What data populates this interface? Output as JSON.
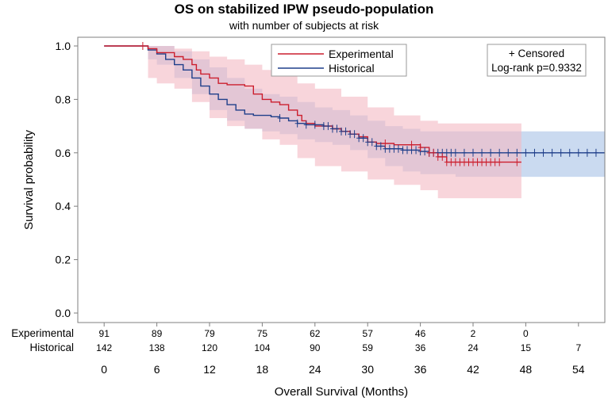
{
  "chart_data": {
    "type": "line",
    "subtype": "kaplan-meier",
    "title": "OS on stabilized IPW pseudo-population",
    "subtitle": "with number of subjects at risk",
    "xlabel": "Overall Survival (Months)",
    "ylabel": "Survival probability",
    "xlim": [
      -3,
      57
    ],
    "ylim": [
      0,
      1.0
    ],
    "xticks": [
      0,
      6,
      12,
      18,
      24,
      30,
      36,
      42,
      48,
      54
    ],
    "yticks": [
      "0.0",
      "0.2",
      "0.4",
      "0.6",
      "0.8",
      "1.0"
    ],
    "legend": {
      "placement": "top-center",
      "entries": [
        "Experimental",
        "Historical"
      ]
    },
    "censor_note": {
      "symbol_label": "+ Censored",
      "logrank": "Log-rank p=0.9332"
    },
    "series": [
      {
        "name": "Experimental",
        "color": "#cc1f2e",
        "band_color": "#f3b9c3",
        "steps": [
          [
            0,
            1.0
          ],
          [
            5,
            0.99
          ],
          [
            6,
            0.975
          ],
          [
            8,
            0.96
          ],
          [
            9,
            0.95
          ],
          [
            10,
            0.93
          ],
          [
            10.5,
            0.91
          ],
          [
            11,
            0.895
          ],
          [
            12,
            0.88
          ],
          [
            13,
            0.86
          ],
          [
            14,
            0.855
          ],
          [
            16,
            0.85
          ],
          [
            17,
            0.82
          ],
          [
            18,
            0.8
          ],
          [
            19,
            0.79
          ],
          [
            20,
            0.78
          ],
          [
            21,
            0.76
          ],
          [
            22,
            0.74
          ],
          [
            22.5,
            0.72
          ],
          [
            23,
            0.71
          ],
          [
            24,
            0.7
          ],
          [
            26,
            0.69
          ],
          [
            27,
            0.68
          ],
          [
            28,
            0.67
          ],
          [
            29,
            0.66
          ],
          [
            30,
            0.64
          ],
          [
            31,
            0.635
          ],
          [
            33,
            0.63
          ],
          [
            36,
            0.62
          ],
          [
            37,
            0.6
          ],
          [
            38,
            0.585
          ],
          [
            39,
            0.565
          ],
          [
            47.5,
            0.565
          ]
        ],
        "band": [
          [
            0,
            1.0,
            1.0
          ],
          [
            5,
            0.88,
            1.0
          ],
          [
            6,
            0.86,
            1.0
          ],
          [
            8,
            0.84,
            0.99
          ],
          [
            10,
            0.79,
            0.98
          ],
          [
            12,
            0.73,
            0.96
          ],
          [
            14,
            0.7,
            0.95
          ],
          [
            16,
            0.69,
            0.93
          ],
          [
            18,
            0.65,
            0.91
          ],
          [
            20,
            0.63,
            0.89
          ],
          [
            22,
            0.58,
            0.86
          ],
          [
            24,
            0.55,
            0.84
          ],
          [
            27,
            0.53,
            0.81
          ],
          [
            30,
            0.5,
            0.77
          ],
          [
            33,
            0.48,
            0.74
          ],
          [
            36,
            0.46,
            0.72
          ],
          [
            38,
            0.43,
            0.71
          ],
          [
            47.5,
            0.43,
            0.71
          ]
        ],
        "censored_x": [
          4.4,
          32,
          35,
          36,
          37,
          37.5,
          38,
          38.5,
          39,
          39.5,
          40,
          40.5,
          41,
          41.5,
          42,
          42.5,
          43,
          43.5,
          44,
          44.5,
          45,
          47
        ]
      },
      {
        "name": "Historical",
        "color": "#1f3f8a",
        "band_color": "#a7c2e6",
        "steps": [
          [
            0,
            1.0
          ],
          [
            5,
            0.985
          ],
          [
            6,
            0.97
          ],
          [
            7,
            0.95
          ],
          [
            8,
            0.93
          ],
          [
            9,
            0.91
          ],
          [
            10,
            0.88
          ],
          [
            11,
            0.85
          ],
          [
            12,
            0.82
          ],
          [
            13,
            0.8
          ],
          [
            14,
            0.78
          ],
          [
            15,
            0.76
          ],
          [
            16,
            0.745
          ],
          [
            17,
            0.74
          ],
          [
            19,
            0.735
          ],
          [
            20,
            0.73
          ],
          [
            21,
            0.72
          ],
          [
            22,
            0.71
          ],
          [
            23,
            0.705
          ],
          [
            25,
            0.7
          ],
          [
            26,
            0.69
          ],
          [
            27,
            0.68
          ],
          [
            28,
            0.67
          ],
          [
            29,
            0.655
          ],
          [
            30,
            0.64
          ],
          [
            31,
            0.625
          ],
          [
            32,
            0.615
          ],
          [
            34,
            0.61
          ],
          [
            36,
            0.605
          ],
          [
            37,
            0.6
          ],
          [
            57,
            0.6
          ]
        ],
        "band": [
          [
            0,
            1.0,
            1.0
          ],
          [
            5,
            0.95,
            1.0
          ],
          [
            6,
            0.93,
            1.0
          ],
          [
            8,
            0.88,
            0.98
          ],
          [
            10,
            0.82,
            0.95
          ],
          [
            12,
            0.76,
            0.92
          ],
          [
            14,
            0.72,
            0.88
          ],
          [
            16,
            0.69,
            0.84
          ],
          [
            18,
            0.68,
            0.82
          ],
          [
            20,
            0.67,
            0.81
          ],
          [
            22,
            0.65,
            0.79
          ],
          [
            24,
            0.64,
            0.77
          ],
          [
            26,
            0.63,
            0.76
          ],
          [
            28,
            0.61,
            0.74
          ],
          [
            30,
            0.58,
            0.72
          ],
          [
            32,
            0.55,
            0.7
          ],
          [
            34,
            0.53,
            0.69
          ],
          [
            36,
            0.52,
            0.68
          ],
          [
            40,
            0.51,
            0.68
          ],
          [
            57,
            0.51,
            0.68
          ]
        ],
        "censored_x": [
          20,
          22,
          23,
          24,
          25,
          25.5,
          26,
          26.5,
          27,
          27.5,
          28,
          28.5,
          29,
          29.5,
          30,
          30.5,
          31,
          31.5,
          32,
          32.5,
          33,
          33.5,
          34,
          34.5,
          35,
          35.5,
          36,
          36.5,
          37,
          37.5,
          38,
          38.5,
          39,
          39.5,
          40,
          41,
          42,
          43,
          44,
          45,
          46,
          47,
          48,
          49,
          50,
          51,
          52,
          53,
          54,
          55,
          56
        ]
      }
    ],
    "at_risk": {
      "times": [
        0,
        6,
        12,
        18,
        24,
        30,
        36,
        42,
        48,
        54
      ],
      "rows": [
        {
          "label": "Experimental",
          "values": [
            "91",
            "89",
            "79",
            "75",
            "62",
            "57",
            "46",
            "2",
            "0",
            ""
          ]
        },
        {
          "label": "Historical",
          "values": [
            "142",
            "138",
            "120",
            "104",
            "90",
            "59",
            "36",
            "24",
            "15",
            "7"
          ]
        }
      ]
    }
  }
}
